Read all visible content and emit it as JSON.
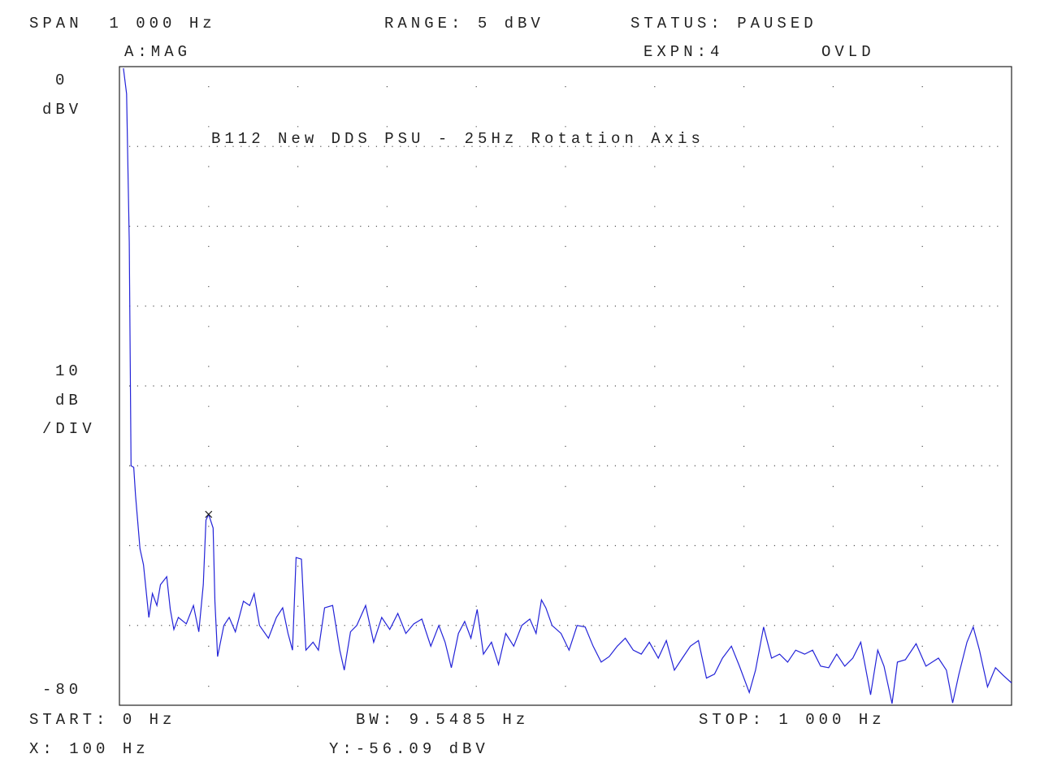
{
  "header": {
    "span": "SPAN  1 000 Hz",
    "range": "RANGE: 5 dBV",
    "status": "STATUS: PAUSED",
    "trace": "A:MAG",
    "expn": "EXPN:4",
    "ovld": "OVLD"
  },
  "chart_data": {
    "type": "line",
    "title": "B112 New DDS PSU - 25Hz Rotation Axis",
    "color": "#2323d8",
    "y_unit": "dBV",
    "y_per_div": 10,
    "y_div_unit": "dB",
    "y_div_suffix": "/DIV",
    "xlim": [
      0,
      1000
    ],
    "ylim": [
      -80,
      0
    ],
    "grid": true,
    "x": [
      4.5,
      8,
      11,
      13,
      16,
      18,
      23,
      27,
      33,
      37,
      42,
      46,
      53,
      57,
      61,
      66,
      75,
      83,
      89,
      94,
      97,
      100,
      105,
      107,
      110,
      117,
      123,
      130,
      139,
      146,
      151,
      157,
      167,
      176,
      183,
      189,
      194,
      198,
      204,
      209,
      217,
      223,
      230,
      239,
      247,
      252,
      259,
      266,
      276,
      285,
      294,
      303,
      312,
      321,
      330,
      339,
      349,
      358,
      365,
      372,
      380,
      387,
      394,
      401,
      408,
      417,
      425,
      433,
      442,
      451,
      460,
      467,
      473,
      478,
      485,
      495,
      504,
      513,
      522,
      531,
      540,
      549,
      558,
      567,
      576,
      585,
      594,
      604,
      613,
      622,
      631,
      640,
      649,
      658,
      667,
      676,
      686,
      695,
      706,
      713,
      722,
      731,
      740,
      749,
      758,
      768,
      777,
      786,
      795,
      804,
      813,
      822,
      831,
      842,
      850,
      857,
      866,
      872,
      881,
      893,
      904,
      918,
      927,
      934,
      941,
      950,
      957,
      964,
      973,
      982,
      991,
      1000
    ],
    "values": [
      -0.2,
      -3.4,
      -22,
      -50,
      -50.2,
      -53.7,
      -60.4,
      -62.4,
      -69,
      -66,
      -67.5,
      -64.9,
      -63.9,
      -68,
      -70.5,
      -69,
      -69.8,
      -67.5,
      -70.8,
      -64.9,
      -56.8,
      -56.09,
      -57.8,
      -66.97,
      -73.9,
      -70,
      -69,
      -70.8,
      -66.97,
      -67.5,
      -66,
      -70,
      -71.6,
      -69,
      -67.8,
      -71,
      -73.1,
      -61.5,
      -61.7,
      -73.1,
      -72.1,
      -73.1,
      -67.8,
      -67.5,
      -73.1,
      -75.6,
      -70.8,
      -70,
      -67.5,
      -72.1,
      -69,
      -70.5,
      -68.5,
      -71,
      -69.8,
      -69.2,
      -72.6,
      -70,
      -72.1,
      -75.3,
      -71,
      -69.5,
      -71.6,
      -68,
      -73.6,
      -72.1,
      -74.9,
      -71,
      -72.6,
      -70,
      -69.2,
      -71,
      -66.8,
      -67.8,
      -70,
      -71,
      -73.1,
      -70,
      -70.2,
      -72.6,
      -74.6,
      -73.9,
      -72.6,
      -71.6,
      -73.1,
      -73.6,
      -72.1,
      -74.1,
      -71.9,
      -75.6,
      -74.1,
      -72.6,
      -71.9,
      -76.6,
      -76.1,
      -74.1,
      -72.6,
      -75.1,
      -78.4,
      -75.6,
      -70.2,
      -74.1,
      -73.6,
      -74.6,
      -73.1,
      -73.6,
      -73.1,
      -75.1,
      -75.3,
      -73.6,
      -75.1,
      -74.1,
      -72.1,
      -78.7,
      -73.1,
      -75.1,
      -79.8,
      -74.6,
      -74.3,
      -72.3,
      -75.1,
      -74.1,
      -75.6,
      -79.7,
      -76.1,
      -72.1,
      -70.2,
      -73.1,
      -77.7,
      -75.3,
      -76.3,
      -77.2
    ],
    "marker": {
      "x": 100,
      "y": -56.09,
      "x_label": "X: 100 Hz",
      "y_label": "Y:-56.09 dBV"
    }
  },
  "footer": {
    "start": "START: 0 Hz",
    "bw": "BW: 9.5485 Hz",
    "stop": "STOP: 1 000 Hz"
  }
}
